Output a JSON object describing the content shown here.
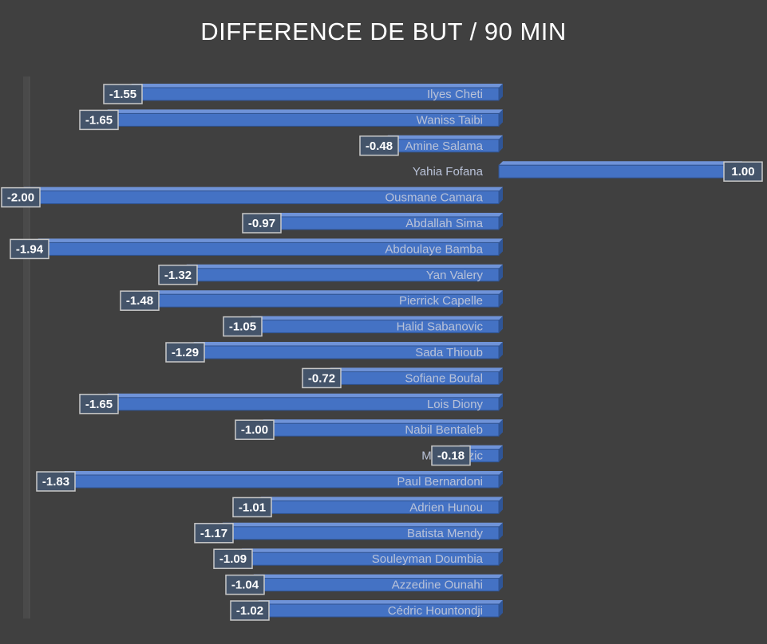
{
  "chart_data": {
    "type": "bar",
    "orientation": "horizontal",
    "title": "DIFFERENCE DE BUT / 90 MIN",
    "xlabel": "",
    "ylabel": "",
    "xlim": [
      -2,
      1
    ],
    "grid": false,
    "legend": "none",
    "categories": [
      "Ilyes Cheti",
      "Waniss Taibi",
      "Amine Salama",
      "Yahia Fofana",
      "Ousmane Camara",
      "Abdallah Sima",
      "Abdoulaye Bamba",
      "Yan Valery",
      "Pierrick Capelle",
      "Halid Sabanovic",
      "Sada Thioub",
      "Sofiane Boufal",
      "Lois Diony",
      "Nabil Bentaleb",
      "Miha Blazic",
      "Paul Bernardoni",
      "Adrien Hunou",
      "Batista Mendy",
      "Souleyman Doumbia",
      "Azzedine Ounahi",
      "Cédric Hountondji"
    ],
    "values": [
      -1.55,
      -1.65,
      -0.48,
      1.0,
      -2.0,
      -0.97,
      -1.94,
      -1.32,
      -1.48,
      -1.05,
      -1.29,
      -0.72,
      -1.65,
      -1.0,
      -0.18,
      -1.83,
      -1.01,
      -1.17,
      -1.09,
      -1.04,
      -1.02
    ],
    "value_labels": [
      "-1.55",
      "-1.65",
      "-0.48",
      "1.00",
      "-2.00",
      "-0.97",
      "-1.94",
      "-1.32",
      "-1.48",
      "-1.05",
      "-1.29",
      "-0.72",
      "-1.65",
      "-1.00",
      "-0.18",
      "-1.83",
      "-1.01",
      "-1.17",
      "-1.09",
      "-1.04",
      "-1.02"
    ],
    "colors": {
      "bar_front": "#4472c4",
      "bar_top": "#6f93d8",
      "bar_side": "#2f5597",
      "label_box": "#44546a",
      "label_border": "#c9c9c9",
      "category_text": "#b9c2d8",
      "background": "#404040"
    }
  }
}
